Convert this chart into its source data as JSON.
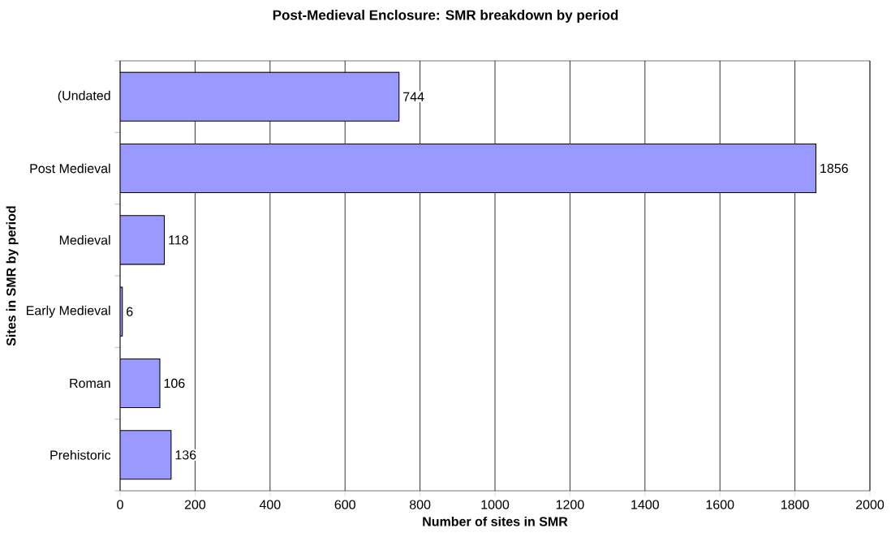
{
  "chart_data": {
    "type": "bar",
    "orientation": "horizontal",
    "title": "Post-Medieval Enclosure: SMR breakdown by period",
    "xlabel": "Number of sites in SMR",
    "ylabel": "Sites in SMR by period",
    "categories": [
      "(Undated",
      "Post Medieval",
      "Medieval",
      "Early Medieval",
      "Roman",
      "Prehistoric"
    ],
    "values": [
      744,
      1856,
      118,
      6,
      106,
      136
    ],
    "color": "#9999ff",
    "xlim": [
      0,
      2000
    ],
    "xticks": [
      0,
      200,
      400,
      600,
      800,
      1000,
      1200,
      1400,
      1600,
      1800,
      2000
    ],
    "grid": "x",
    "data_labels": true
  }
}
